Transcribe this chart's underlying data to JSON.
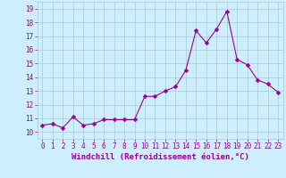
{
  "x": [
    0,
    1,
    2,
    3,
    4,
    5,
    6,
    7,
    8,
    9,
    10,
    11,
    12,
    13,
    14,
    15,
    16,
    17,
    18,
    19,
    20,
    21,
    22,
    23
  ],
  "y": [
    10.5,
    10.6,
    10.3,
    11.1,
    10.5,
    10.6,
    10.9,
    10.9,
    10.9,
    10.9,
    12.6,
    12.6,
    13.0,
    13.3,
    14.5,
    17.4,
    16.5,
    17.5,
    18.8,
    15.3,
    14.9,
    13.8,
    13.5,
    12.9
  ],
  "line_color": "#990099",
  "marker": "D",
  "marker_size": 2.5,
  "bg_color": "#cceeff",
  "grid_color": "#aacccc",
  "xlabel": "Windchill (Refroidissement éolien,°C)",
  "xlim": [
    -0.5,
    23.5
  ],
  "ylim": [
    9.5,
    19.5
  ],
  "yticks": [
    10,
    11,
    12,
    13,
    14,
    15,
    16,
    17,
    18,
    19
  ],
  "xticks": [
    0,
    1,
    2,
    3,
    4,
    5,
    6,
    7,
    8,
    9,
    10,
    11,
    12,
    13,
    14,
    15,
    16,
    17,
    18,
    19,
    20,
    21,
    22,
    23
  ],
  "tick_fontsize": 5.5,
  "xlabel_fontsize": 6.5,
  "label_color": "#990099",
  "linewidth": 0.8
}
